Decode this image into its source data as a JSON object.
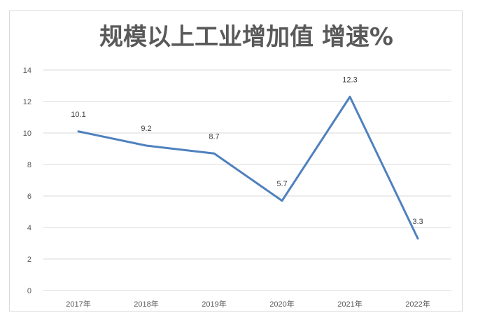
{
  "chart_data": {
    "type": "line",
    "title": "规模以上工业增加值 增速%",
    "categories": [
      "2017年",
      "2018年",
      "2019年",
      "2020年",
      "2021年",
      "2022年"
    ],
    "series": [
      {
        "values": [
          10.1,
          9.2,
          8.7,
          5.7,
          12.3,
          3.3
        ],
        "labels": [
          "10.1",
          "9.2",
          "8.7",
          "5.7",
          "12.3",
          "3.3"
        ],
        "color": "#4f81bd"
      }
    ],
    "yticks": [
      "0",
      "2",
      "4",
      "6",
      "8",
      "10",
      "12",
      "14"
    ],
    "ylim": [
      0,
      14
    ],
    "grid": true,
    "legend": "none"
  }
}
